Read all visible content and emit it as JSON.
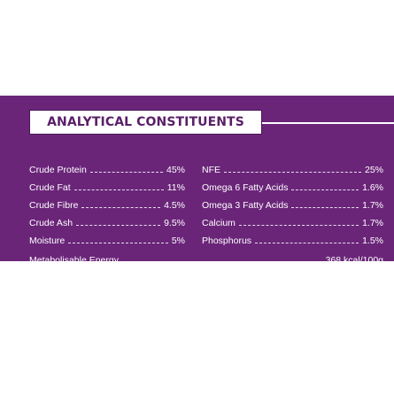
{
  "title": "ANALYTICAL CONSTITUENTS",
  "left_rows": [
    {
      "label": "Crude Protein",
      "value": "45%"
    },
    {
      "label": "Crude Fat",
      "value": "11%"
    },
    {
      "label": "Crude Fibre",
      "value": "4.5%"
    },
    {
      "label": "Crude Ash",
      "value": "9.5%"
    },
    {
      "label": "Moisture",
      "value": "5%"
    }
  ],
  "right_rows": [
    {
      "label": "NFE",
      "value": "25%"
    },
    {
      "label": "Omega 6 Fatty Acids",
      "value": "1.6%"
    },
    {
      "label": "Omega 3 Fatty Acids",
      "value": "1.7%"
    },
    {
      "label": "Calcium",
      "value": "1.7%"
    },
    {
      "label": "Phosphorus",
      "value": "1.5%"
    }
  ],
  "energy": {
    "label": "Metabolisable Energy",
    "value": "368 kcal/100g"
  },
  "colors": {
    "panel": "#6a2579",
    "title_text": "#5a1f68"
  }
}
